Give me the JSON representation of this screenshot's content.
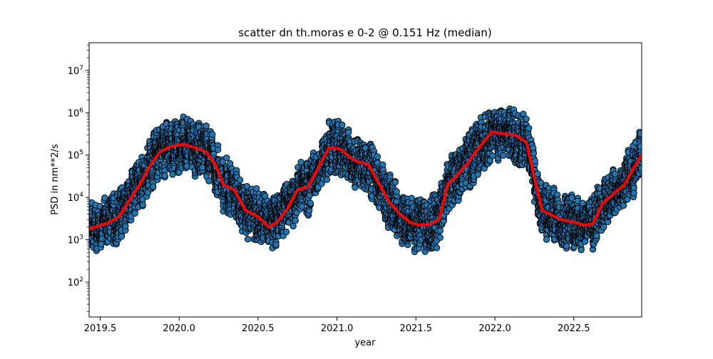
{
  "chart_data": {
    "type": "scatter",
    "title": "scatter dn th.moras e 0-2 @ 0.151 Hz (median)",
    "xlabel": "year",
    "ylabel": "PSD in nm**2/s",
    "xlim": [
      2019.43,
      2022.93
    ],
    "ylim": [
      15,
      45000000
    ],
    "yscale": "log",
    "grid": false,
    "legend": "none",
    "xticks": [
      {
        "value": 2019.5,
        "label": "2019.5"
      },
      {
        "value": 2020.0,
        "label": "2020.0"
      },
      {
        "value": 2020.5,
        "label": "2020.5"
      },
      {
        "value": 2021.0,
        "label": "2021.0"
      },
      {
        "value": 2021.5,
        "label": "2021.5"
      },
      {
        "value": 2022.0,
        "label": "2022.0"
      },
      {
        "value": 2022.5,
        "label": "2022.5"
      }
    ],
    "yticks": [
      {
        "value": 100,
        "base": "10",
        "exp": "2"
      },
      {
        "value": 1000,
        "base": "10",
        "exp": "3"
      },
      {
        "value": 10000,
        "base": "10",
        "exp": "4"
      },
      {
        "value": 100000,
        "base": "10",
        "exp": "5"
      },
      {
        "value": 1000000,
        "base": "10",
        "exp": "6"
      },
      {
        "value": 10000000,
        "base": "10",
        "exp": "7"
      }
    ],
    "colors": {
      "points": "#1f77b4",
      "point_edge": "#000000",
      "median": "#ff0000"
    },
    "median_curve": {
      "x": [
        2019.43,
        2019.55,
        2019.62,
        2019.68,
        2019.75,
        2019.82,
        2019.88,
        2019.95,
        2020.03,
        2020.1,
        2020.17,
        2020.23,
        2020.28,
        2020.35,
        2020.42,
        2020.5,
        2020.57,
        2020.62,
        2020.68,
        2020.75,
        2020.82,
        2020.88,
        2020.95,
        2021.02,
        2021.08,
        2021.13,
        2021.2,
        2021.27,
        2021.33,
        2021.4,
        2021.47,
        2021.53,
        2021.6,
        2021.65,
        2021.7,
        2021.75,
        2021.82,
        2021.9,
        2021.98,
        2022.05,
        2022.13,
        2022.2,
        2022.25,
        2022.3,
        2022.35,
        2022.42,
        2022.5,
        2022.57,
        2022.62,
        2022.68,
        2022.75,
        2022.82,
        2022.88,
        2022.93
      ],
      "y": [
        1800,
        2500,
        3500,
        8000,
        20000,
        60000,
        120000,
        160000,
        180000,
        150000,
        120000,
        60000,
        20000,
        15000,
        5000,
        3500,
        2000,
        2600,
        5000,
        15000,
        18000,
        50000,
        150000,
        140000,
        90000,
        70000,
        60000,
        20000,
        8000,
        4000,
        2500,
        2200,
        2400,
        3200,
        20000,
        30000,
        60000,
        150000,
        350000,
        320000,
        300000,
        200000,
        30000,
        5000,
        4000,
        3000,
        2600,
        2200,
        2400,
        7000,
        12000,
        20000,
        50000,
        100000
      ]
    },
    "scatter_model": {
      "description_free": true,
      "n_days": 1278,
      "points_per_day": 5,
      "spread_decades": 1.3
    }
  }
}
